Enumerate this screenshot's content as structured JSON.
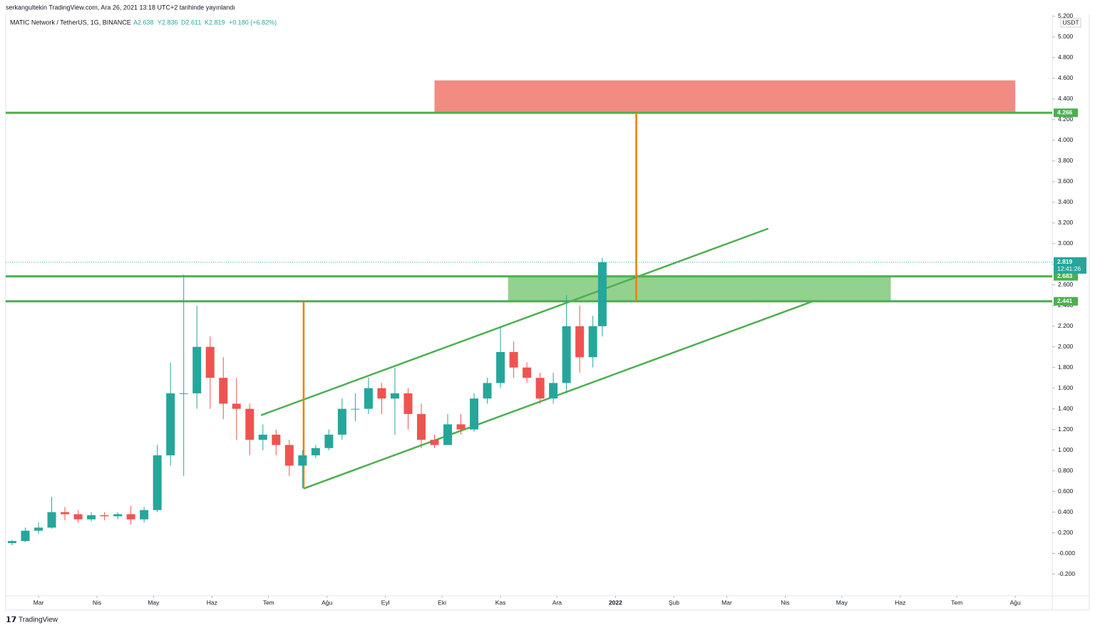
{
  "chart_data": {
    "type": "candlestick",
    "header": "serkangultekin TradingView.com, Ara 26, 2021 13:18 UTC+2 tarihinde yayınlandı",
    "symbol": "MATIC Network / TetherUS, 1G, BINANCE",
    "ohlc_labels": [
      "A2.638",
      "Y2.836",
      "D2.611",
      "K2.819"
    ],
    "change": "+0.180 (+6.82%)",
    "unit": "USDT",
    "footer": "TradingView",
    "up_color": "#26a69a",
    "down_color": "#ef5350",
    "x": [
      -14,
      -7,
      0,
      7,
      14,
      21,
      28,
      35,
      42,
      49,
      56,
      63,
      70,
      77,
      84,
      91,
      98,
      105,
      112,
      119,
      126,
      133,
      140,
      147,
      154,
      161,
      168,
      175,
      182,
      189,
      196,
      203,
      210,
      217,
      224,
      231,
      238,
      245,
      252,
      259,
      266,
      273,
      280,
      287,
      294,
      299
    ],
    "open": [
      0.1,
      0.12,
      0.22,
      0.25,
      0.4,
      0.38,
      0.33,
      0.37,
      0.36,
      0.38,
      0.33,
      0.42,
      0.95,
      1.55,
      1.55,
      2.0,
      1.7,
      1.45,
      1.4,
      1.1,
      1.15,
      1.05,
      0.85,
      0.95,
      1.02,
      1.15,
      1.4,
      1.4,
      1.6,
      1.5,
      1.55,
      1.35,
      1.1,
      1.05,
      1.25,
      1.2,
      1.5,
      1.65,
      1.95,
      1.8,
      1.7,
      1.5,
      1.65,
      2.2,
      1.9,
      2.2
    ],
    "high": [
      0.13,
      0.25,
      0.3,
      0.55,
      0.45,
      0.42,
      0.4,
      0.4,
      0.4,
      0.46,
      0.45,
      1.05,
      1.85,
      2.7,
      2.4,
      2.1,
      1.9,
      1.7,
      1.45,
      1.25,
      1.2,
      1.1,
      1.0,
      1.05,
      1.2,
      1.5,
      1.55,
      1.7,
      1.65,
      1.8,
      1.6,
      1.45,
      1.15,
      1.35,
      1.35,
      1.55,
      1.7,
      2.2,
      2.05,
      1.85,
      1.75,
      1.75,
      2.5,
      2.4,
      2.3,
      2.86
    ],
    "low": [
      0.08,
      0.11,
      0.19,
      0.24,
      0.32,
      0.3,
      0.31,
      0.32,
      0.33,
      0.28,
      0.3,
      0.4,
      0.85,
      0.75,
      1.4,
      1.4,
      1.3,
      1.1,
      0.95,
      1.0,
      0.95,
      0.75,
      0.63,
      0.92,
      1.0,
      1.1,
      1.28,
      1.35,
      1.35,
      1.15,
      1.2,
      1.02,
      1.02,
      1.05,
      1.15,
      1.18,
      1.45,
      1.6,
      1.7,
      1.65,
      1.45,
      1.45,
      1.55,
      1.75,
      1.8,
      2.1
    ],
    "close": [
      0.12,
      0.22,
      0.25,
      0.4,
      0.38,
      0.33,
      0.37,
      0.36,
      0.38,
      0.33,
      0.42,
      0.95,
      1.55,
      1.55,
      2.0,
      1.7,
      1.45,
      1.4,
      1.1,
      1.15,
      1.05,
      0.85,
      0.95,
      1.02,
      1.15,
      1.4,
      1.4,
      1.6,
      1.5,
      1.55,
      1.35,
      1.1,
      1.05,
      1.25,
      1.2,
      1.5,
      1.65,
      1.95,
      1.8,
      1.7,
      1.5,
      1.65,
      2.2,
      1.9,
      2.2,
      2.819
    ],
    "xlim": [
      -17.4,
      537.6
    ],
    "ylim": [
      -0.41,
      5.22
    ],
    "xticks": [
      {
        "value": 0,
        "label": "Mar"
      },
      {
        "value": 31,
        "label": "Nis"
      },
      {
        "value": 61,
        "label": "May"
      },
      {
        "value": 92,
        "label": "Haz"
      },
      {
        "value": 122,
        "label": "Tem"
      },
      {
        "value": 153,
        "label": "Ağu"
      },
      {
        "value": 184,
        "label": "Eyl"
      },
      {
        "value": 214,
        "label": "Eki"
      },
      {
        "value": 245,
        "label": "Kas"
      },
      {
        "value": 275,
        "label": "Ara"
      },
      {
        "value": 306,
        "label": "2022"
      },
      {
        "value": 337,
        "label": "Şub"
      },
      {
        "value": 365,
        "label": "Mar"
      },
      {
        "value": 396,
        "label": "Nis"
      },
      {
        "value": 426,
        "label": "May"
      },
      {
        "value": 457,
        "label": "Haz"
      },
      {
        "value": 487,
        "label": "Tem"
      },
      {
        "value": 518,
        "label": "Ağu"
      }
    ],
    "yticks": [
      {
        "value": 5.2,
        "label": "5.200"
      },
      {
        "value": 5.0,
        "label": "5.000"
      },
      {
        "value": 4.8,
        "label": "4.800"
      },
      {
        "value": 4.6,
        "label": "4.600"
      },
      {
        "value": 4.4,
        "label": "4.400"
      },
      {
        "value": 4.2,
        "label": "4.200"
      },
      {
        "value": 4.0,
        "label": "4.000"
      },
      {
        "value": 3.8,
        "label": "3.800"
      },
      {
        "value": 3.6,
        "label": "3.600"
      },
      {
        "value": 3.4,
        "label": "3.400"
      },
      {
        "value": 3.2,
        "label": "3.200"
      },
      {
        "value": 3.0,
        "label": "3.000"
      },
      {
        "value": 2.8,
        "label": "2.800"
      },
      {
        "value": 2.6,
        "label": "2.600"
      },
      {
        "value": 2.4,
        "label": "2.400"
      },
      {
        "value": 2.2,
        "label": "2.200"
      },
      {
        "value": 2.0,
        "label": "2.000"
      },
      {
        "value": 1.8,
        "label": "1.800"
      },
      {
        "value": 1.6,
        "label": "1.600"
      },
      {
        "value": 1.4,
        "label": "1.400"
      },
      {
        "value": 1.2,
        "label": "1.200"
      },
      {
        "value": 1.0,
        "label": "1.000"
      },
      {
        "value": 0.8,
        "label": "0.800"
      },
      {
        "value": 0.6,
        "label": "0.600"
      },
      {
        "value": 0.4,
        "label": "0.400"
      },
      {
        "value": 0.2,
        "label": "0.200"
      },
      {
        "value": 0,
        "label": "-0.000"
      },
      {
        "value": -0.2,
        "label": "-0.200"
      }
    ],
    "levels": [
      4.266,
      2.683,
      2.441
    ],
    "level_color": "#4caf50",
    "last_price": 2.819,
    "countdown": "12:41:26",
    "last_color": "#26a69a",
    "zones": [
      {
        "x": [
          210,
          518
        ],
        "y": [
          4.266,
          4.58
        ],
        "color": "#f28b82"
      },
      {
        "x": [
          249,
          452
        ],
        "y": [
          2.441,
          2.683
        ],
        "color": "#93d18f"
      }
    ],
    "trend_lines": [
      {
        "x": [
          118,
          387
        ],
        "y": [
          1.338,
          3.145
        ],
        "color": "#4caf50"
      },
      {
        "x": [
          140.6,
          410.6
        ],
        "y": [
          0.628,
          2.441
        ],
        "color": "#4caf50"
      },
      {
        "x": [
          140.6,
          140.6
        ],
        "y": [
          0.628,
          2.441
        ],
        "color": "#f57c00"
      },
      {
        "x": [
          317,
          317
        ],
        "y": [
          2.441,
          4.266
        ],
        "color": "#f57c00"
      }
    ]
  }
}
